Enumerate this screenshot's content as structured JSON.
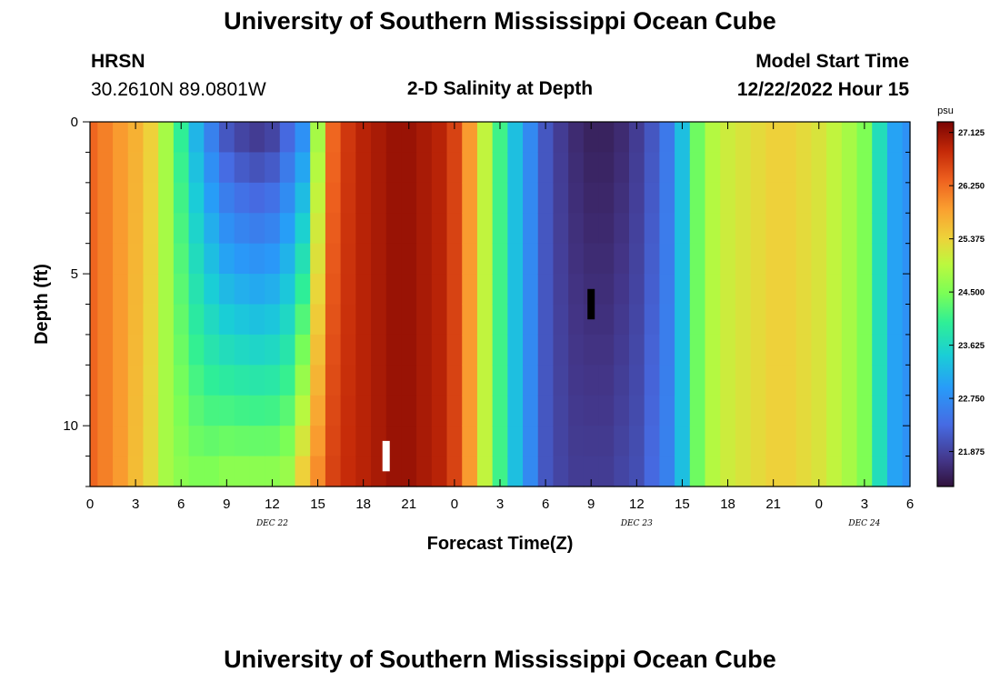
{
  "header": {
    "title": "University of Southern Mississippi Ocean Cube",
    "station": "HRSN",
    "coords": "30.2610N  89.0801W",
    "subtitle": "2-D Salinity at Depth",
    "model_start_label": "Model Start Time",
    "model_start_value": "12/22/2022 Hour 15"
  },
  "footer": {
    "title": "University of Southern Mississippi Ocean Cube"
  },
  "chart_data": {
    "type": "heatmap",
    "title": "2-D Salinity at Depth",
    "xlabel": "Forecast Time(Z)",
    "ylabel": "Depth (ft)",
    "x_range_hours": [
      0,
      54
    ],
    "y_range_ft": [
      0,
      12
    ],
    "x_ticks": [
      {
        "h": 0,
        "label": "0"
      },
      {
        "h": 3,
        "label": "3"
      },
      {
        "h": 6,
        "label": "6"
      },
      {
        "h": 9,
        "label": "9"
      },
      {
        "h": 12,
        "label": "12"
      },
      {
        "h": 15,
        "label": "15"
      },
      {
        "h": 18,
        "label": "18"
      },
      {
        "h": 21,
        "label": "21"
      },
      {
        "h": 24,
        "label": "0"
      },
      {
        "h": 27,
        "label": "3"
      },
      {
        "h": 30,
        "label": "6"
      },
      {
        "h": 33,
        "label": "9"
      },
      {
        "h": 36,
        "label": "12"
      },
      {
        "h": 39,
        "label": "15"
      },
      {
        "h": 42,
        "label": "18"
      },
      {
        "h": 45,
        "label": "21"
      },
      {
        "h": 48,
        "label": "0"
      },
      {
        "h": 51,
        "label": "3"
      },
      {
        "h": 54,
        "label": "6"
      }
    ],
    "date_labels": [
      {
        "h": 12,
        "label": "DEC 22"
      },
      {
        "h": 36,
        "label": "DEC 23"
      },
      {
        "h": 51,
        "label": "DEC 24"
      }
    ],
    "y_ticks": [
      0,
      5,
      10
    ],
    "colorbar": {
      "unit": "psu",
      "min": 21.3,
      "max": 27.3,
      "ticks": [
        "27.125",
        "26.250",
        "25.375",
        "24.500",
        "23.625",
        "22.750",
        "21.875"
      ]
    },
    "surface_salinity_by_hour": [
      26.3,
      26.1,
      25.9,
      25.7,
      25.4,
      24.8,
      24.0,
      23.2,
      22.6,
      22.1,
      21.9,
      21.8,
      21.9,
      22.3,
      22.8,
      24.8,
      26.3,
      26.7,
      26.9,
      27.0,
      27.1,
      27.1,
      27.0,
      26.9,
      26.6,
      25.9,
      25.0,
      24.1,
      23.3,
      22.7,
      22.1,
      21.8,
      21.6,
      21.5,
      21.5,
      21.6,
      21.8,
      22.1,
      22.5,
      23.3,
      24.4,
      24.9,
      25.1,
      25.2,
      25.3,
      25.4,
      25.4,
      25.3,
      25.2,
      25.0,
      24.8,
      24.5,
      23.7,
      23.0,
      22.8
    ],
    "bottom_salinity_by_hour": [
      26.3,
      26.1,
      25.9,
      25.6,
      25.3,
      24.8,
      24.6,
      24.5,
      24.5,
      24.6,
      24.6,
      24.6,
      24.6,
      24.7,
      25.4,
      26.0,
      26.6,
      26.8,
      26.9,
      27.0,
      27.1,
      27.1,
      27.0,
      26.9,
      26.6,
      25.9,
      25.0,
      24.1,
      23.3,
      22.7,
      22.1,
      21.9,
      21.8,
      21.8,
      21.8,
      21.9,
      22.0,
      22.3,
      22.6,
      23.3,
      24.4,
      24.9,
      25.1,
      25.2,
      25.3,
      25.4,
      25.4,
      25.3,
      25.2,
      25.0,
      24.8,
      24.5,
      23.7,
      23.0,
      22.8
    ],
    "markers": [
      {
        "color": "#ffffff",
        "hour": 19.5,
        "depth_top": 10.5,
        "depth_bottom": 11.5
      },
      {
        "color": "#000000",
        "hour": 33.0,
        "depth_top": 5.5,
        "depth_bottom": 6.5
      }
    ]
  }
}
